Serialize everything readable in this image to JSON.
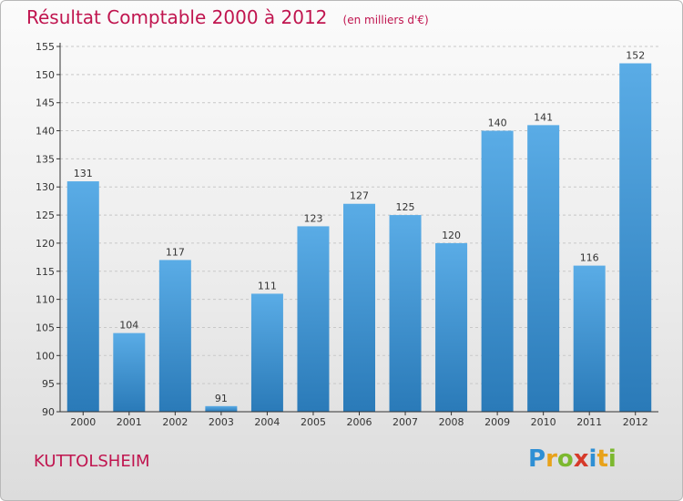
{
  "chart_data": {
    "type": "bar",
    "title": "Résultat Comptable 2000 à 2012",
    "subtitle": "(en milliers d'€)",
    "categories": [
      "2000",
      "2001",
      "2002",
      "2003",
      "2004",
      "2005",
      "2006",
      "2007",
      "2008",
      "2009",
      "2010",
      "2011",
      "2012"
    ],
    "values": [
      131,
      104,
      117,
      91,
      111,
      123,
      127,
      125,
      120,
      140,
      141,
      116,
      152
    ],
    "ylim": [
      90,
      155
    ],
    "yticks": [
      90,
      95,
      100,
      105,
      110,
      115,
      120,
      125,
      130,
      135,
      140,
      145,
      150,
      155
    ],
    "grid": true,
    "bar_color_top": "#5aace6",
    "bar_color_bottom": "#2a7ab8",
    "xlabel": "",
    "ylabel": ""
  },
  "location": "KUTTOLSHEIM",
  "logo": {
    "letters": [
      {
        "char": "P",
        "color": "#2e8fd4"
      },
      {
        "char": "r",
        "color": "#e8a21a"
      },
      {
        "char": "o",
        "color": "#7cb82f"
      },
      {
        "char": "x",
        "color": "#d63a2a"
      },
      {
        "char": "i",
        "color": "#2e8fd4"
      },
      {
        "char": "t",
        "color": "#e8a21a"
      },
      {
        "char": "i",
        "color": "#7cb82f"
      }
    ]
  },
  "colors": {
    "title": "#c0154f",
    "grid": "#c8c8c8",
    "axis": "#333333"
  }
}
